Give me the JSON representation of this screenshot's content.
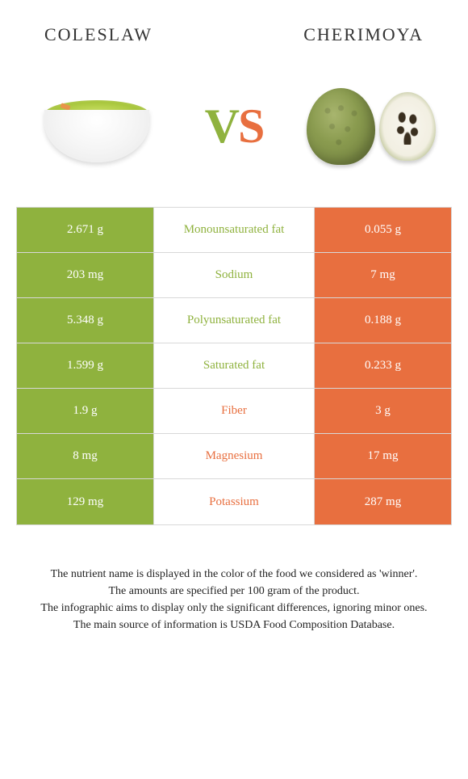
{
  "header": {
    "left_title": "COLESLAW",
    "right_title": "CHERIMOYA"
  },
  "vs": {
    "v": "V",
    "s": "S"
  },
  "colors": {
    "left": "#8fb23e",
    "right": "#e86f3f",
    "mid_bg": "#ffffff",
    "border": "#d8d8d8"
  },
  "table": {
    "rows": [
      {
        "left": "2.671 g",
        "label": "Monounsaturated fat",
        "right": "0.055 g",
        "winner": "left"
      },
      {
        "left": "203 mg",
        "label": "Sodium",
        "right": "7 mg",
        "winner": "left"
      },
      {
        "left": "5.348 g",
        "label": "Polyunsaturated fat",
        "right": "0.188 g",
        "winner": "left"
      },
      {
        "left": "1.599 g",
        "label": "Saturated fat",
        "right": "0.233 g",
        "winner": "left"
      },
      {
        "left": "1.9 g",
        "label": "Fiber",
        "right": "3 g",
        "winner": "right"
      },
      {
        "left": "8 mg",
        "label": "Magnesium",
        "right": "17 mg",
        "winner": "right"
      },
      {
        "left": "129 mg",
        "label": "Potassium",
        "right": "287 mg",
        "winner": "right"
      }
    ]
  },
  "footer": {
    "line1": "The nutrient name is displayed in the color of the food we considered as 'winner'.",
    "line2": "The amounts are specified per 100 gram of the product.",
    "line3": "The infographic aims to display only the significant differences, ignoring minor ones.",
    "line4": "The main source of information is USDA Food Composition Database."
  }
}
